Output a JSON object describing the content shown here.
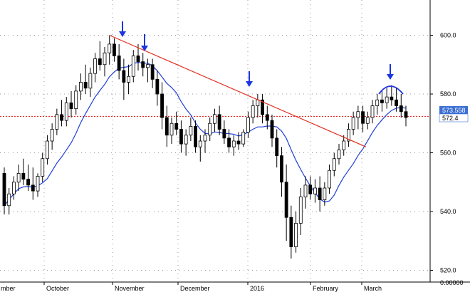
{
  "chart_data": {
    "type": "candlestick",
    "title": "",
    "xlabel": "",
    "ylabel": "",
    "ylim": [
      516,
      612
    ],
    "grid": true,
    "x_tick_labels": [
      "mber",
      "October",
      "November",
      "December",
      "2016",
      "February",
      "March"
    ],
    "y_tick_labels": [
      "600.0",
      "580.0",
      "560.0",
      "540.0",
      "520.0",
      "0.00000"
    ],
    "y_ticks": [
      600,
      580,
      560,
      540,
      520
    ],
    "price_markers": [
      {
        "label": "573.558",
        "value": 573.56,
        "color": "#3b6fd4",
        "text_color": "#ffffff"
      },
      {
        "label": "572.4",
        "value": 572.4,
        "color": "#ffffff",
        "text_color": "#000000"
      }
    ],
    "reference_line": {
      "value": 572.4,
      "color": "#e01010",
      "style": "dotted"
    },
    "trend_line": {
      "from": 600,
      "to": 562,
      "color": "#e03020"
    },
    "moving_average_color": "#1f3fd8",
    "candles": [
      [
        553,
        555,
        539,
        542
      ],
      [
        542,
        548,
        539,
        546
      ],
      [
        546,
        552,
        544,
        550
      ],
      [
        550,
        556,
        547,
        553
      ],
      [
        553,
        558,
        549,
        551
      ],
      [
        551,
        556,
        547,
        549
      ],
      [
        549,
        555,
        544,
        547
      ],
      [
        547,
        553,
        545,
        552
      ],
      [
        552,
        560,
        550,
        558
      ],
      [
        558,
        566,
        556,
        564
      ],
      [
        564,
        570,
        561,
        568
      ],
      [
        568,
        575,
        566,
        573
      ],
      [
        573,
        578,
        569,
        571
      ],
      [
        571,
        579,
        569,
        577
      ],
      [
        577,
        581,
        572,
        575
      ],
      [
        575,
        583,
        573,
        581
      ],
      [
        581,
        587,
        578,
        584
      ],
      [
        584,
        590,
        580,
        582
      ],
      [
        582,
        589,
        579,
        587
      ],
      [
        587,
        594,
        584,
        592
      ],
      [
        592,
        598,
        588,
        590
      ],
      [
        590,
        596,
        586,
        594
      ],
      [
        594,
        600,
        590,
        597
      ],
      [
        597,
        599,
        591,
        593
      ],
      [
        593,
        597,
        585,
        588
      ],
      [
        588,
        592,
        578,
        584
      ],
      [
        584,
        590,
        580,
        586
      ],
      [
        586,
        595,
        584,
        593
      ],
      [
        593,
        597,
        588,
        591
      ],
      [
        591,
        594,
        586,
        589
      ],
      [
        589,
        592,
        584,
        590
      ],
      [
        590,
        592,
        582,
        585
      ],
      [
        585,
        588,
        576,
        580
      ],
      [
        580,
        584,
        568,
        572
      ],
      [
        572,
        576,
        562,
        566
      ],
      [
        566,
        572,
        563,
        570
      ],
      [
        570,
        574,
        566,
        568
      ],
      [
        568,
        571,
        560,
        563
      ],
      [
        563,
        568,
        559,
        566
      ],
      [
        566,
        572,
        564,
        569
      ],
      [
        569,
        571,
        560,
        562
      ],
      [
        562,
        566,
        557,
        564
      ],
      [
        564,
        568,
        560,
        566
      ],
      [
        566,
        572,
        564,
        570
      ],
      [
        570,
        575,
        567,
        573
      ],
      [
        573,
        576,
        566,
        568
      ],
      [
        568,
        571,
        563,
        565
      ],
      [
        565,
        568,
        560,
        562
      ],
      [
        562,
        566,
        559,
        564
      ],
      [
        564,
        567,
        561,
        563
      ],
      [
        563,
        568,
        562,
        567
      ],
      [
        567,
        574,
        565,
        572
      ],
      [
        572,
        578,
        570,
        576
      ],
      [
        576,
        580,
        572,
        578
      ],
      [
        578,
        580,
        570,
        573
      ],
      [
        573,
        576,
        568,
        571
      ],
      [
        571,
        573,
        562,
        565
      ],
      [
        565,
        568,
        555,
        559
      ],
      [
        559,
        562,
        545,
        550
      ],
      [
        550,
        556,
        530,
        538
      ],
      [
        538,
        542,
        524,
        528
      ],
      [
        528,
        540,
        526,
        536
      ],
      [
        536,
        548,
        532,
        545
      ],
      [
        545,
        552,
        541,
        549
      ],
      [
        549,
        552,
        544,
        546
      ],
      [
        546,
        551,
        543,
        548
      ],
      [
        548,
        552,
        540,
        544
      ],
      [
        544,
        550,
        542,
        548
      ],
      [
        548,
        556,
        546,
        554
      ],
      [
        554,
        560,
        552,
        558
      ],
      [
        558,
        563,
        556,
        561
      ],
      [
        561,
        566,
        559,
        564
      ],
      [
        564,
        570,
        562,
        568
      ],
      [
        568,
        574,
        566,
        572
      ],
      [
        572,
        576,
        568,
        574
      ],
      [
        574,
        576,
        567,
        570
      ],
      [
        570,
        574,
        568,
        572
      ],
      [
        572,
        578,
        570,
        576
      ],
      [
        576,
        580,
        573,
        578
      ],
      [
        578,
        581,
        574,
        577
      ],
      [
        577,
        582,
        575,
        579
      ],
      [
        579,
        583,
        576,
        578
      ],
      [
        578,
        582,
        574,
        576
      ],
      [
        576,
        580,
        572,
        574
      ],
      [
        574,
        576,
        569,
        572
      ]
    ]
  }
}
